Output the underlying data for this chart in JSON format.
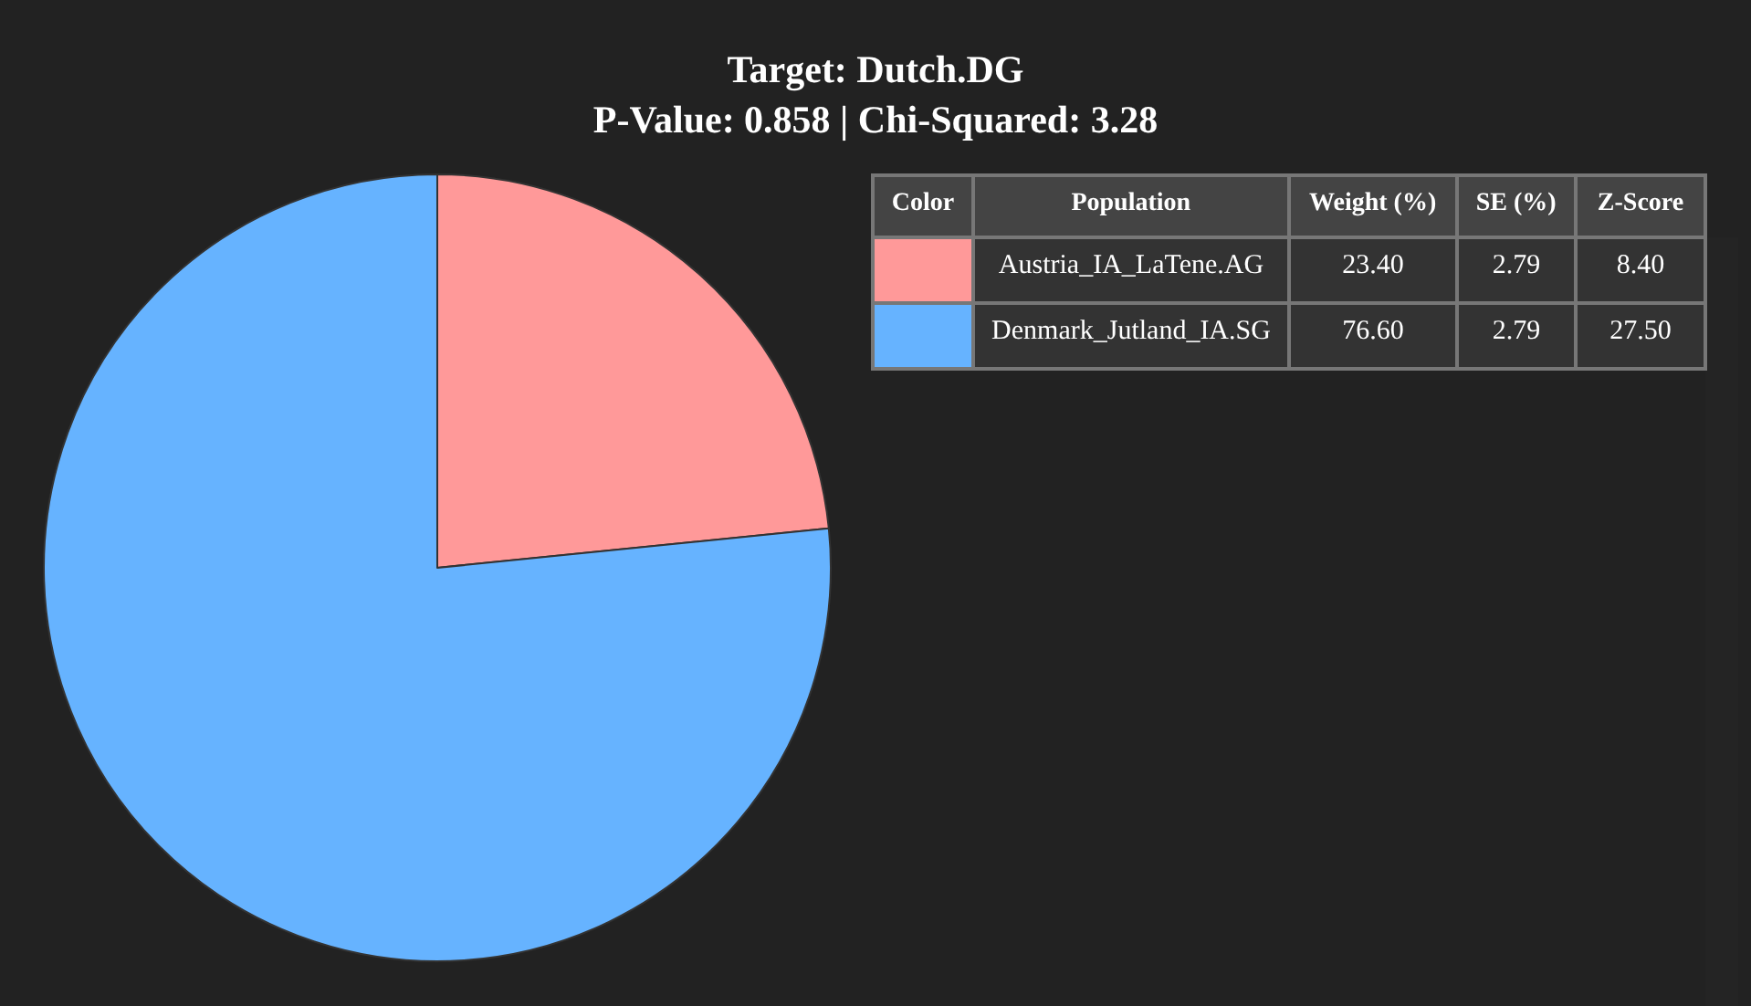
{
  "chart_data": [
    {
      "type": "pie",
      "title": "Target: Dutch.DG\nP-Value: 0.858 | Chi-Squared: 3.28",
      "categories": [
        "Austria_IA_LaTene.AG",
        "Denmark_Jutland_IA.SG"
      ],
      "values": [
        23.4,
        76.6
      ],
      "colors": [
        "#ff9999",
        "#66b3ff"
      ],
      "legend": "top right"
    },
    {
      "type": "other",
      "categories": [
        "Color",
        "Population",
        "Weight (%)",
        "SE (%)",
        "Z-Score"
      ],
      "cell_labels": [
        [
          "23.40",
          "2.79",
          "8.40"
        ],
        [
          "76.60",
          "2.79",
          "27.50"
        ]
      ]
    }
  ]
}
